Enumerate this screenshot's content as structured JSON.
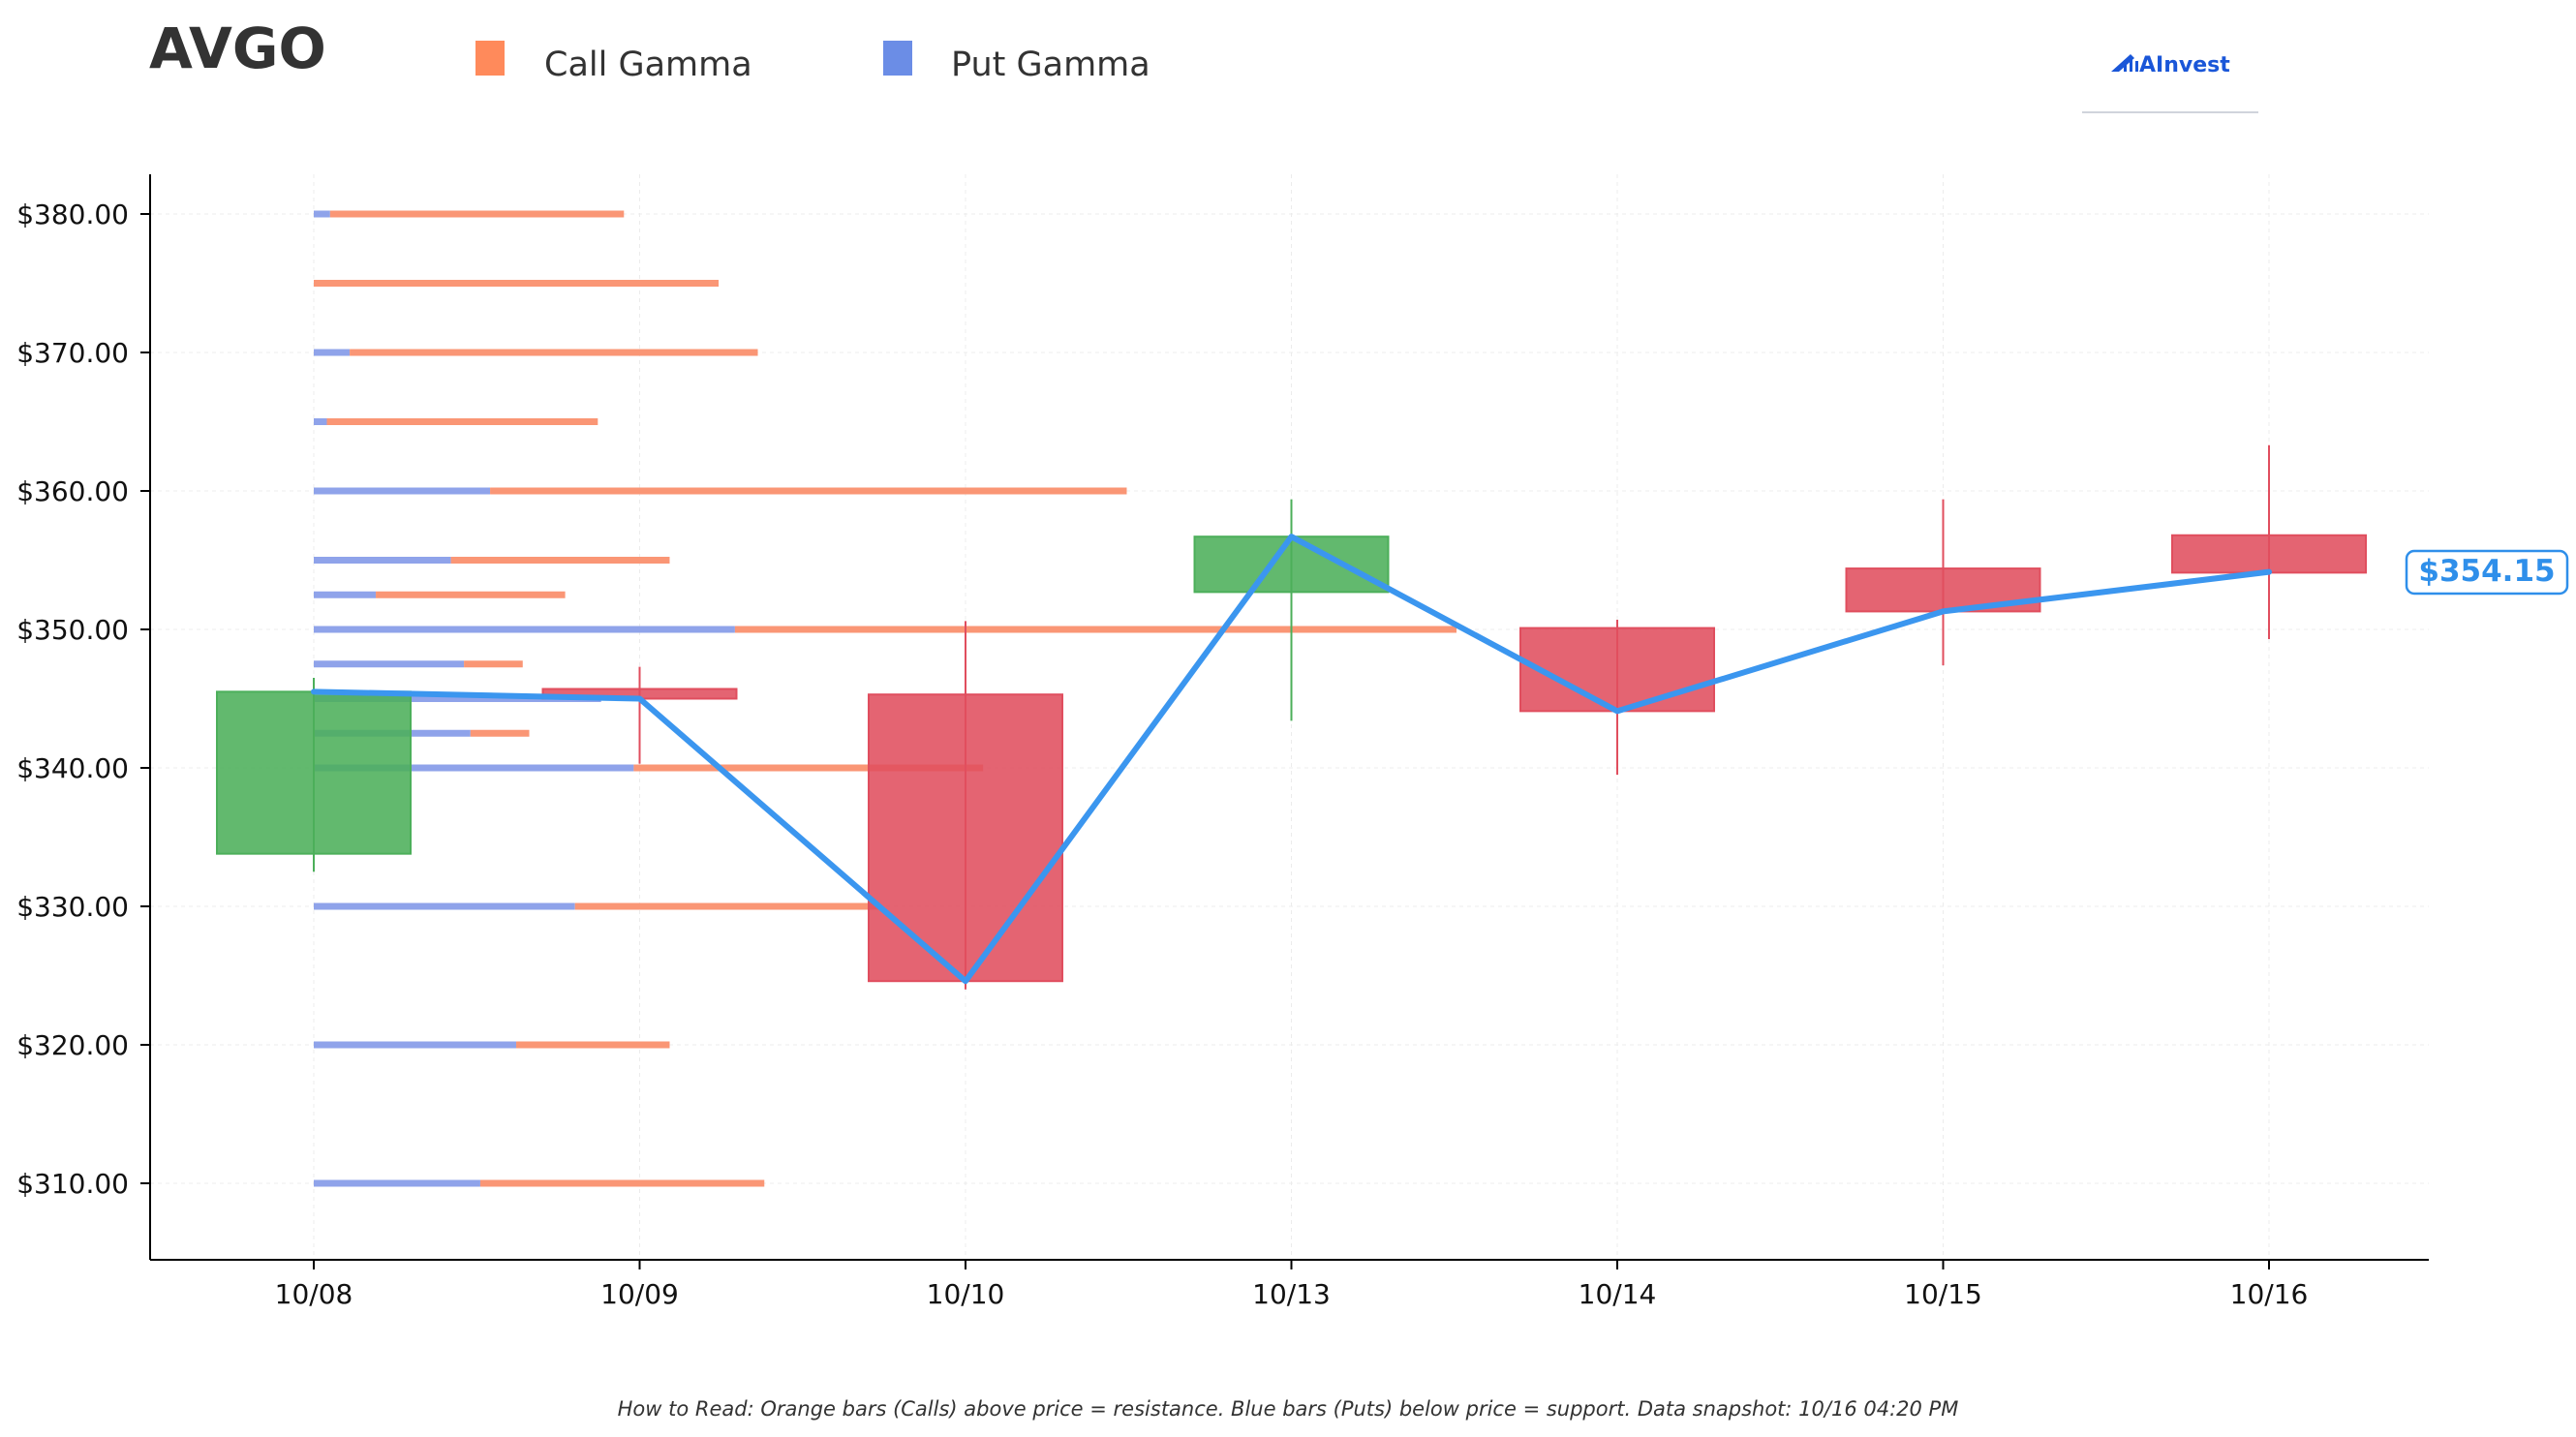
{
  "header": {
    "ticker": "AVGO",
    "logo_text": "AInvest"
  },
  "legend": [
    {
      "label": "Call Gamma",
      "color": "#ff8a5b"
    },
    {
      "label": "Put Gamma",
      "color": "#6b8de6"
    }
  ],
  "current_price_label": "$354.15",
  "footnote": "How to Read: Orange bars (Calls) above price = resistance. Blue bars (Puts) below price = support. Data snapshot: 10/16 04:20 PM",
  "colors": {
    "call": "#fa9675",
    "put": "#8fa3ea",
    "up": "#4caf5a",
    "down": "#e04e5e",
    "price_line": "#3b96ef"
  },
  "chart_data": {
    "type": "candlestick",
    "title": "AVGO",
    "xlabel": "",
    "ylabel": "",
    "ylim": [
      304.5,
      383
    ],
    "y_ticks": [
      310,
      320,
      330,
      340,
      350,
      360,
      370,
      380
    ],
    "y_tick_labels": [
      "$310.00",
      "$320.00",
      "$330.00",
      "$340.00",
      "$350.00",
      "$360.00",
      "$370.00",
      "$380.00"
    ],
    "categories": [
      "10/08",
      "10/09",
      "10/10",
      "10/13",
      "10/14",
      "10/15",
      "10/16"
    ],
    "candles": [
      {
        "date": "10/08",
        "open": 333.8,
        "close": 345.5,
        "high": 346.5,
        "low": 332.5
      },
      {
        "date": "10/09",
        "open": 345.7,
        "close": 345.0,
        "high": 347.3,
        "low": 340.3
      },
      {
        "date": "10/10",
        "open": 345.3,
        "close": 324.6,
        "high": 350.6,
        "low": 324.0
      },
      {
        "date": "10/13",
        "open": 352.7,
        "close": 356.7,
        "high": 359.4,
        "low": 343.4
      },
      {
        "date": "10/14",
        "open": 350.1,
        "close": 344.1,
        "high": 350.7,
        "low": 339.5
      },
      {
        "date": "10/15",
        "open": 354.4,
        "close": 351.3,
        "high": 359.4,
        "low": 347.4
      },
      {
        "date": "10/16",
        "open": 356.8,
        "close": 354.1,
        "high": 363.3,
        "low": 349.3
      }
    ],
    "close_line": [
      {
        "date": "10/08",
        "value": 345.5
      },
      {
        "date": "10/09",
        "value": 345.0
      },
      {
        "date": "10/10",
        "value": 324.6
      },
      {
        "date": "10/13",
        "value": 356.7
      },
      {
        "date": "10/14",
        "value": 344.1
      },
      {
        "date": "10/15",
        "value": 351.3
      },
      {
        "date": "10/16",
        "value": 354.15
      }
    ],
    "gamma_bars": [
      {
        "strike": 380,
        "put": 0.05,
        "call": 0.9
      },
      {
        "strike": 375,
        "put": 0.0,
        "call": 1.24
      },
      {
        "strike": 370,
        "put": 0.11,
        "call": 1.25
      },
      {
        "strike": 365,
        "put": 0.04,
        "call": 0.83
      },
      {
        "strike": 360,
        "put": 0.54,
        "call": 1.95
      },
      {
        "strike": 355,
        "put": 0.42,
        "call": 0.67
      },
      {
        "strike": 352.5,
        "put": 0.19,
        "call": 0.58
      },
      {
        "strike": 350,
        "put": 1.29,
        "call": 2.21
      },
      {
        "strike": 347.5,
        "put": 0.46,
        "call": 0.18
      },
      {
        "strike": 345,
        "put": 0.88,
        "call": 0.0
      },
      {
        "strike": 342.5,
        "put": 0.48,
        "call": 0.18
      },
      {
        "strike": 340,
        "put": 0.98,
        "call": 1.07
      },
      {
        "strike": 330,
        "put": 0.8,
        "call": 0.93
      },
      {
        "strike": 320,
        "put": 0.62,
        "call": 0.47
      },
      {
        "strike": 310,
        "put": 0.51,
        "call": 0.87
      }
    ],
    "gamma_scale_max": 3.5,
    "grid": true,
    "legend_position": "top-left"
  }
}
